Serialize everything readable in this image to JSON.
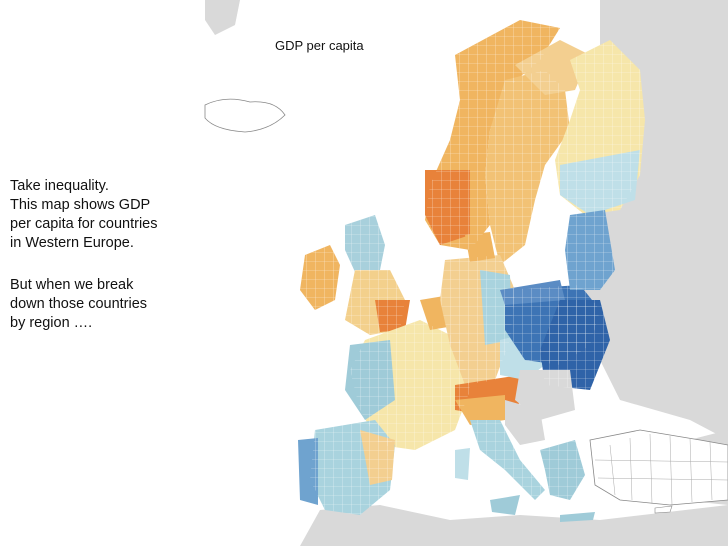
{
  "map": {
    "title": "GDP per capita",
    "legend_scale": {
      "low_color": "#e8823a",
      "mid_color": "#f6e7b4",
      "high_color": "#2f63a8"
    },
    "colors": {
      "background": "#ffffff",
      "land_outside": "#d9d9d9",
      "border": "#ffffff"
    }
  },
  "caption": {
    "paragraph1": [
      "Take inequality.",
      "This map shows GDP",
      "per capita for countries",
      "in Western Europe."
    ],
    "paragraph2": [
      "But when we break",
      "down those countries",
      "by region …."
    ]
  }
}
